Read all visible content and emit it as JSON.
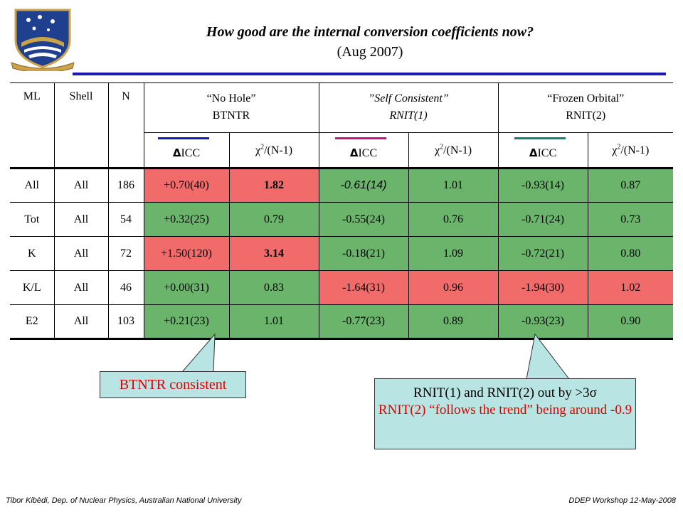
{
  "slide": {
    "title": "How good are the internal conversion coefficients now?",
    "subtitle": "(Aug 2007)"
  },
  "table": {
    "headers": {
      "ml": "ML",
      "shell": "Shell",
      "n": "N",
      "groups": [
        {
          "line1": "“No Hole”",
          "line2": "BTNTR"
        },
        {
          "line1": "”Self Consistent”",
          "line2": "RNIT(1)"
        },
        {
          "line1": "“Frozen Orbital”",
          "line2": "RNIT(2)"
        }
      ],
      "delta_symbol": "Δ",
      "delta_label": "ICC",
      "chi_symbol": "χ",
      "chi_sup": "2",
      "chi_rest": "/(N-1)"
    },
    "rows": [
      {
        "ml": "All",
        "shell": "All",
        "n": "186",
        "btntr_icc": "+0.70(40)",
        "btntr_chi": "1.82",
        "rnit1_icc": "-0.61(14)",
        "rnit1_chi": "1.01",
        "rnit2_icc": "-0.93(14)",
        "rnit2_chi": "0.87"
      },
      {
        "ml": "Tot",
        "shell": "All",
        "n": "54",
        "btntr_icc": "+0.32(25)",
        "btntr_chi": "0.79",
        "rnit1_icc": "-0.55(24)",
        "rnit1_chi": "0.76",
        "rnit2_icc": "-0.71(24)",
        "rnit2_chi": "0.73"
      },
      {
        "ml": "K",
        "shell": "All",
        "n": "72",
        "btntr_icc": "+1.50(120)",
        "btntr_chi": "3.14",
        "rnit1_icc": "-0.18(21)",
        "rnit1_chi": "1.09",
        "rnit2_icc": "-0.72(21)",
        "rnit2_chi": "0.80"
      },
      {
        "ml": "K/L",
        "shell": "All",
        "n": "46",
        "btntr_icc": "+0.00(31)",
        "btntr_chi": "0.83",
        "rnit1_icc": "-1.64(31)",
        "rnit1_chi": "0.96",
        "rnit2_icc": "-1.94(30)",
        "rnit2_chi": "1.02"
      },
      {
        "ml": "E2",
        "shell": "All",
        "n": "103",
        "btntr_icc": "+0.21(23)",
        "btntr_chi": "1.01",
        "rnit1_icc": "-0.77(23)",
        "rnit1_chi": "0.89",
        "rnit2_icc": "-0.93(23)",
        "rnit2_chi": "0.90"
      }
    ]
  },
  "colors": {
    "highlight_green": "#6bb46b",
    "highlight_red": "#f26b6b",
    "rule_blue": "#1a1ab0",
    "callout_bg": "#b8e4e4",
    "callout_text_red": "#e00000"
  },
  "callouts": {
    "left": "BTNTR consistent",
    "right_line1": "RNIT(1) and RNIT(2) out by >3σ",
    "right_line2": "RNIT(2) “follows the trend” being around -0.9"
  },
  "footer": {
    "left": "Tibor Kibèdi, Dep. of Nuclear Physics, Australian National University",
    "right": "DDEP Workshop 12-May-2008"
  }
}
